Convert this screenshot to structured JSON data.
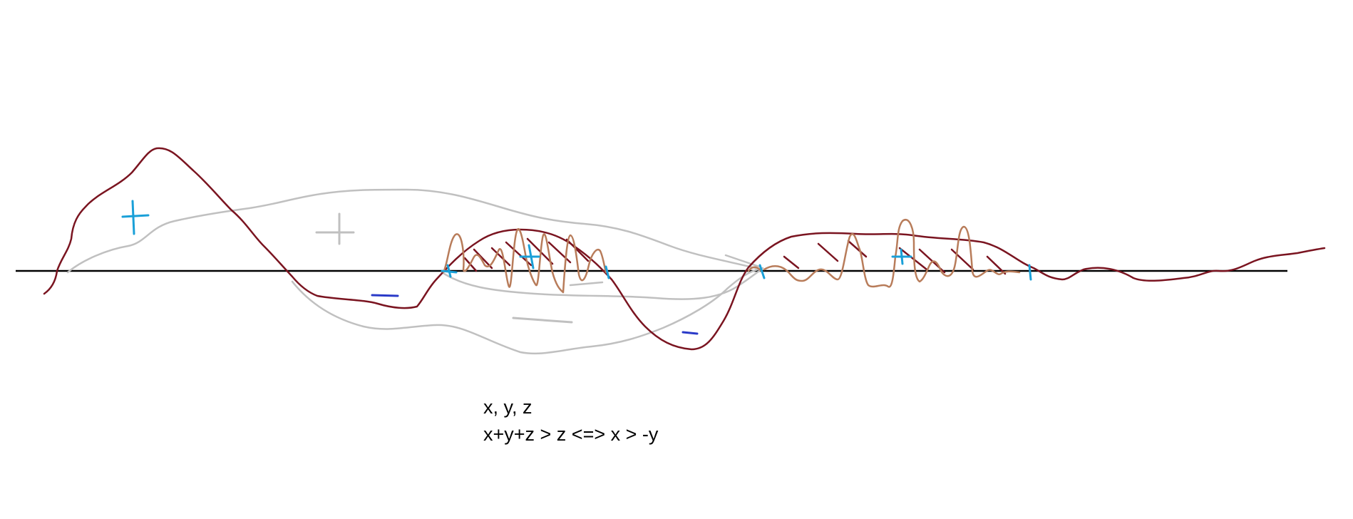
{
  "notes": {
    "line1": "x, y, z",
    "line2": "x+y+z > z <=> x > -y"
  },
  "colors": {
    "background": "#ffffff",
    "axis": "#000000",
    "dark_curve": "#7a1420",
    "gray_curve": "#c0c0c0",
    "brown_scribble": "#b87c5a",
    "plus_sign": "#1aa0d8",
    "minus_sign": "#2a3ac8",
    "gray_sign": "#c0c0c0",
    "note_text": "#000000"
  },
  "signs": {
    "positive": "+",
    "negative": "−"
  }
}
